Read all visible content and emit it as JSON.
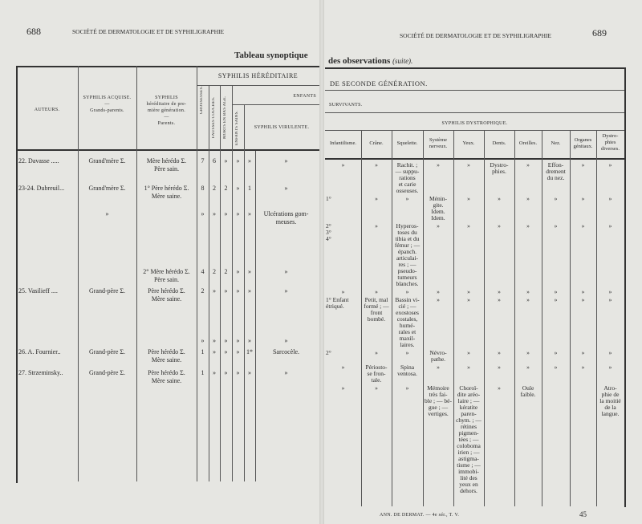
{
  "left_page": {
    "page_number": "688",
    "running_head": "SOCIÉTÉ DE DERMATOLOGIE ET DE SYPHILIGRAPHIE",
    "title": "Tableau synoptique",
    "group_header": "SYPHILIS HÉRÉDITAIRE",
    "enfants_header": "ENFANTS",
    "columns": [
      "AUTEURS.",
      "SYPHILIS ACQUISE.\n—\nGrands-parents.",
      "SYPHILIS\nhéréditaire de pre-\nmière génération.\n—\nParents.",
      "GROSSESSES.",
      "FAUSSES COUCHES.",
      "MORTS EN BAS AGE.",
      "ENFANTS SAINS.",
      "",
      "SYPHILIS VIRULENTE."
    ],
    "rows": [
      [
        "22. Davasse .....",
        "Grand'mère Σ.",
        "Mère hérédo Σ.\nPère sain.",
        "7",
        "6",
        "»",
        "»",
        "»",
        "»"
      ],
      [
        "23-24. Dubreuil...",
        "Grand'mère Σ.",
        "1° Père hérédo Σ.\nMère saine.",
        "8",
        "2",
        "2",
        "»",
        "1",
        "»"
      ],
      [
        "",
        "»",
        "",
        "»",
        "»",
        "»",
        "»",
        "»",
        "Ulcérations gom-\nmeuses."
      ],
      [
        "",
        "",
        "2° Mère hérédo Σ.\nPère sain.",
        "4",
        "2",
        "2",
        "»",
        "»",
        "»"
      ],
      [
        "25. Vasilieff ....",
        "Grand-père Σ.",
        "Père hérédo Σ.\nMère saine.",
        "2",
        "»",
        "»",
        "»",
        "»",
        "»"
      ],
      [
        "",
        "",
        "",
        "»",
        "»",
        "»",
        "»",
        "»",
        "»"
      ],
      [
        "26. A. Fournier..",
        "Grand-père Σ.",
        "Père hérédo Σ.\nMère saine.",
        "1",
        "»",
        "»",
        "»",
        "1*",
        "Sarcocèle."
      ],
      [
        "27. Strzeminsky..",
        "Grand-père Σ.",
        "Père hérédo Σ.\nMère saine.",
        "1",
        "»",
        "»",
        "»",
        "»",
        "»"
      ]
    ]
  },
  "right_page": {
    "page_number": "689",
    "running_head": "SOCIÉTÉ DE DERMATOLOGIE ET DE SYPHILIGRAPHIE",
    "title": "des observations",
    "title_suffix": "(suite).",
    "group_header": "DE SECONDE GÉNÉRATION.",
    "survivants": "SURVIVANTS.",
    "dystrophique": "SYPHILIS DYSTROPHIQUE.",
    "columns": [
      "Infantilisme.",
      "Crâne.",
      "Squelette.",
      "Système\nnerveux.",
      "Yeux.",
      "Dents.",
      "Oreilles.",
      "Nez.",
      "Organes\ngénitaux.",
      "Dystro-\nphies\ndiverses."
    ],
    "rows": [
      [
        "»",
        "»",
        "Rachit. ;\n— suppu-\nrations\net carie\nosseuses.",
        "»",
        "»",
        "Dystro-\nphies.",
        "»",
        "Effon-\ndrement\ndu nez.",
        "»",
        "»"
      ],
      [
        "1°                 ",
        "»",
        "»",
        "Ménin-\ngite.\nIdem.\nIdem.",
        "»",
        "»",
        "»",
        "»",
        "»",
        "»"
      ],
      [
        "2°\n3°\n4°",
        "»",
        "Hyperos-\ntoses du\ntibia et du\nfémur ; —\népanch.\narticulai-\nres ; —\npseudo-\ntumeurs\nblanches.",
        "»",
        "»",
        "»",
        "»",
        "»",
        "»",
        "»"
      ],
      [
        "»",
        "»",
        "»",
        "»",
        "»",
        "»",
        "»",
        "»",
        "»",
        "»"
      ],
      [
        "1° Enfant\nétriqué.",
        "Petit, mal\nformé ; —\nfront\nbombé.",
        "Bassin vi-\ncié ; —\nexostoses\ncostales,\nhumé-\nrales et\nmaxil-\nlaires.",
        "»",
        "»",
        "»",
        "»",
        "»",
        "»",
        "»"
      ],
      [
        "2°",
        "»",
        "»",
        "Névro-\npathe.",
        "»",
        "»",
        "»",
        "»",
        "»",
        "»"
      ],
      [
        "»",
        "Périosto-\nse fron-\ntale.",
        "Spina\nventosa.",
        "»",
        "»",
        "»",
        "»",
        "»",
        "»",
        "»"
      ],
      [
        "»",
        "»",
        "»",
        "Mémoire\ntrès fai-\nble ; — bé-\ngue ; —\nvertiges.",
        "Choroï-\ndite aréo-\nlaire ; —\nkératite\nparen-\nchym. ; —\nrétines\npigmen-\ntées ; —\ncoloboma\nirien ; —\nastigma-\ntisme ; —\nimmobi-\nlité des\nyeux en\ndehors.",
        "»",
        "Ouïe\nfaible.",
        "",
        "",
        "Atro-\nphie de\nla moitié\nde la\nlangue."
      ]
    ],
    "footer": "ANN. DE DERMAT. — 4e sér., T. V.",
    "signature": "45"
  }
}
